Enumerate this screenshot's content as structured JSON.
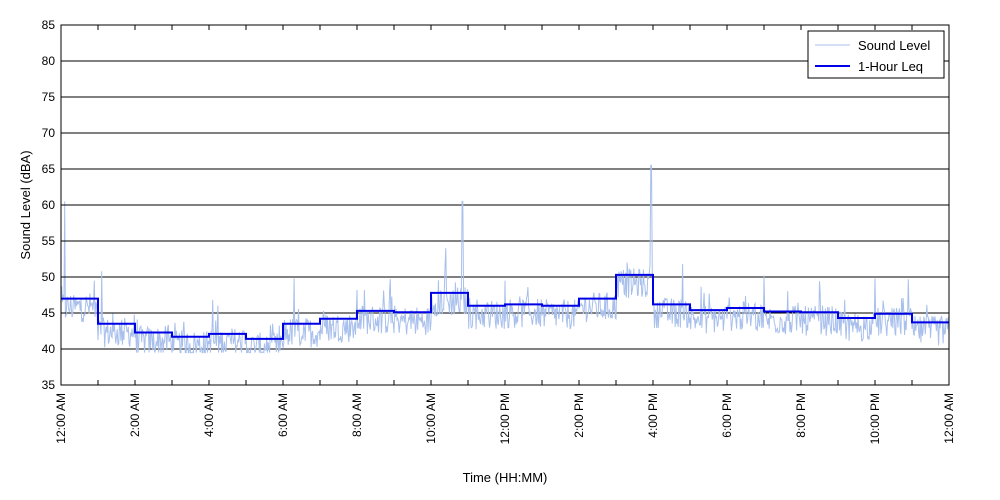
{
  "chart_data": {
    "type": "line",
    "title": "",
    "xlabel": "Time (HH:MM)",
    "ylabel": "Sound Level (dBA)",
    "ylim": [
      35,
      85
    ],
    "yticks": [
      35,
      40,
      45,
      50,
      55,
      60,
      65,
      70,
      75,
      80,
      85
    ],
    "xlim_hours": [
      0,
      24
    ],
    "x_tick_hours": [
      0,
      2,
      4,
      6,
      8,
      10,
      12,
      14,
      16,
      18,
      20,
      22,
      24
    ],
    "x_tick_labels": [
      "12:00 AM",
      "2:00 AM",
      "4:00 AM",
      "6:00 AM",
      "8:00 AM",
      "10:00 AM",
      "12:00 PM",
      "2:00 PM",
      "4:00 PM",
      "6:00 PM",
      "8:00 PM",
      "10:00 PM",
      "12:00 AM"
    ],
    "grid": "horizontal",
    "legend": "top-right",
    "colors": {
      "sound_level": "#a9c0ec",
      "leq": "#0000e6"
    },
    "series": [
      {
        "name": "Sound Level",
        "note_hour_x": "hours after 12:00 AM",
        "spikes": [
          {
            "hour": 0.1,
            "value": 60.5
          },
          {
            "hour": 0.9,
            "value": 49.5
          },
          {
            "hour": 1.1,
            "value": 50.8
          },
          {
            "hour": 4.1,
            "value": 46.8
          },
          {
            "hour": 6.3,
            "value": 49.8
          },
          {
            "hour": 8.0,
            "value": 48.2
          },
          {
            "hour": 8.9,
            "value": 49.7
          },
          {
            "hour": 10.4,
            "value": 54.0
          },
          {
            "hour": 10.85,
            "value": 60.5
          },
          {
            "hour": 12.0,
            "value": 49.5
          },
          {
            "hour": 15.3,
            "value": 52.0
          },
          {
            "hour": 15.95,
            "value": 65.5
          },
          {
            "hour": 16.8,
            "value": 51.8
          },
          {
            "hour": 19.0,
            "value": 50.2
          },
          {
            "hour": 20.5,
            "value": 49.4
          },
          {
            "hour": 22.0,
            "value": 49.8
          },
          {
            "hour": 22.9,
            "value": 49.7
          }
        ]
      },
      {
        "name": "1-Hour Leq",
        "hours": [
          0,
          1,
          2,
          3,
          4,
          5,
          6,
          7,
          8,
          9,
          10,
          11,
          12,
          13,
          14,
          15,
          16,
          17,
          18,
          19,
          20,
          21,
          22,
          23
        ],
        "values": [
          47.0,
          43.5,
          42.3,
          41.7,
          42.1,
          41.4,
          43.5,
          44.2,
          45.3,
          45.1,
          47.8,
          46.0,
          46.2,
          46.0,
          47.0,
          50.3,
          46.2,
          45.4,
          45.7,
          45.2,
          45.1,
          44.3,
          44.9,
          43.7
        ]
      }
    ]
  }
}
